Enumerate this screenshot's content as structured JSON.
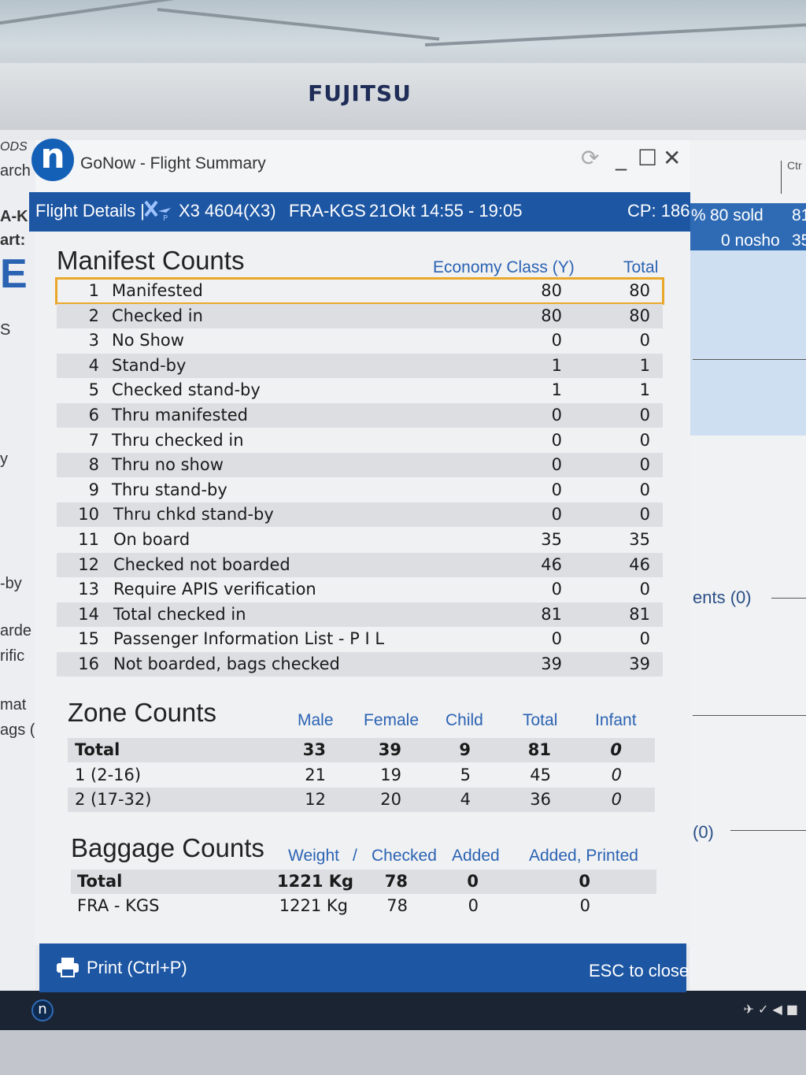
{
  "monitor": {
    "brand": "FUJITSU"
  },
  "window": {
    "app_icon": "n",
    "title": "GoNow - Flight Summary",
    "controls": {
      "refresh": "⟳",
      "minimize": "_",
      "maximize": "☐",
      "close": "✕"
    }
  },
  "flight": {
    "label": "Flight Details |",
    "number": "X3 4604(X3)",
    "route": "FRA-KGS",
    "schedule": "21Okt 14:55 - 19:05",
    "cp": "CP: 186"
  },
  "manifest": {
    "title": "Manifest Counts",
    "columns": [
      "Economy Class (Y)",
      "Total"
    ],
    "rows": [
      {
        "n": "1",
        "label": "Manifested",
        "y": "80",
        "total": "80"
      },
      {
        "n": "2",
        "label": "Checked in",
        "y": "80",
        "total": "80"
      },
      {
        "n": "3",
        "label": "No Show",
        "y": "0",
        "total": "0"
      },
      {
        "n": "4",
        "label": "Stand-by",
        "y": "1",
        "total": "1"
      },
      {
        "n": "5",
        "label": "Checked stand-by",
        "y": "1",
        "total": "1"
      },
      {
        "n": "6",
        "label": "Thru manifested",
        "y": "0",
        "total": "0"
      },
      {
        "n": "7",
        "label": "Thru checked in",
        "y": "0",
        "total": "0"
      },
      {
        "n": "8",
        "label": "Thru no show",
        "y": "0",
        "total": "0"
      },
      {
        "n": "9",
        "label": "Thru stand-by",
        "y": "0",
        "total": "0"
      },
      {
        "n": "10",
        "label": "Thru chkd stand-by",
        "y": "0",
        "total": "0"
      },
      {
        "n": "11",
        "label": "On board",
        "y": "35",
        "total": "35"
      },
      {
        "n": "12",
        "label": "Checked not boarded",
        "y": "46",
        "total": "46"
      },
      {
        "n": "13",
        "label": "Require APIS verification",
        "y": "0",
        "total": "0"
      },
      {
        "n": "14",
        "label": "Total checked in",
        "y": "81",
        "total": "81"
      },
      {
        "n": "15",
        "label": "Passenger Information List - P I L",
        "y": "0",
        "total": "0"
      },
      {
        "n": "16",
        "label": "Not boarded, bags checked",
        "y": "39",
        "total": "39"
      }
    ]
  },
  "zones": {
    "title": "Zone Counts",
    "columns": [
      "Male",
      "Female",
      "Child",
      "Total",
      "Infant"
    ],
    "rows": [
      {
        "label": "Total",
        "male": "33",
        "female": "39",
        "child": "9",
        "total": "81",
        "infant": "0"
      },
      {
        "label": "1 (2-16)",
        "male": "21",
        "female": "19",
        "child": "5",
        "total": "45",
        "infant": "0"
      },
      {
        "label": "2 (17-32)",
        "male": "12",
        "female": "20",
        "child": "4",
        "total": "36",
        "infant": "0"
      }
    ]
  },
  "baggage": {
    "title": "Baggage Counts",
    "columns": [
      "Weight",
      "/",
      "Checked",
      "Added",
      "Added, Printed"
    ],
    "rows": [
      {
        "label": "Total",
        "weight": "1221 Kg",
        "checked": "78",
        "added": "0",
        "printed": "0"
      },
      {
        "label": "FRA - KGS",
        "weight": "1221 Kg",
        "checked": "78",
        "added": "0",
        "printed": "0"
      }
    ]
  },
  "footer": {
    "print": "Print (Ctrl+P)",
    "close": "ESC to close"
  },
  "background": {
    "left_fragments": [
      "ODS",
      "arch",
      "A-K",
      "art:",
      "E",
      "S",
      "y",
      "-by",
      "arde",
      "rific",
      "mat",
      "ags ("
    ],
    "right_stats": {
      "sold": "80 sold",
      "sold_extra": "81",
      "nosho": "0 nosho",
      "nosho_extra": "35",
      "pct": "%",
      "ctrl": "Ctr"
    },
    "right_items": [
      "ents (0)",
      "(0)"
    ]
  }
}
